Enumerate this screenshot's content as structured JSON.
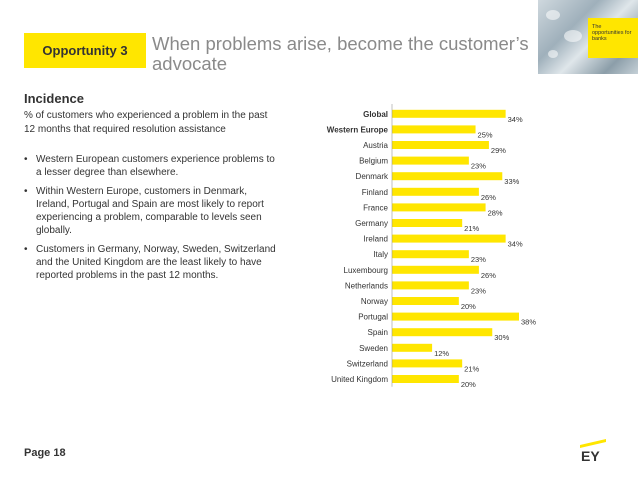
{
  "header": {
    "tag": "Opportunity 3",
    "title": "When problems arise, become the customer’s advocate"
  },
  "hero": {
    "badge_text": "The opportunities for banks"
  },
  "section": {
    "heading": "Incidence",
    "subtitle": "% of customers who experienced a problem in the past 12 months that required resolution assistance"
  },
  "bullets": [
    "Western European customers experience problems to a lesser degree than elsewhere.",
    "Within Western Europe, customers in Denmark, Ireland, Portugal and Spain are most likely to report experiencing a problem, comparable to levels seen globally.",
    "Customers in Germany, Norway, Sweden, Switzerland and the United Kingdom are the least likely to have reported problems in the past 12 months."
  ],
  "footer": {
    "page": "Page 18",
    "logo": "EY"
  },
  "colors": {
    "accent": "#ffe600",
    "text": "#333333",
    "title": "#8a8a8a"
  },
  "chart_data": {
    "type": "bar",
    "orientation": "horizontal",
    "categories": [
      "Global",
      "Western Europe",
      "Austria",
      "Belgium",
      "Denmark",
      "Finland",
      "France",
      "Germany",
      "Ireland",
      "Italy",
      "Luxembourg",
      "Netherlands",
      "Norway",
      "Portugal",
      "Spain",
      "Sweden",
      "Switzerland",
      "United Kingdom"
    ],
    "values": [
      34,
      25,
      29,
      23,
      33,
      26,
      28,
      21,
      34,
      23,
      26,
      23,
      20,
      38,
      30,
      12,
      21,
      20
    ],
    "value_labels": [
      "34%",
      "25%",
      "29%",
      "23%",
      "33%",
      "26%",
      "28%",
      "21%",
      "34%",
      "23%",
      "26%",
      "23%",
      "20%",
      "38%",
      "30%",
      "12%",
      "21%",
      "20%"
    ],
    "bold_categories": [
      "Global",
      "Western Europe"
    ],
    "bar_color": "#ffe600",
    "xlim": [
      0,
      38
    ],
    "grid": false,
    "legend": "none"
  }
}
